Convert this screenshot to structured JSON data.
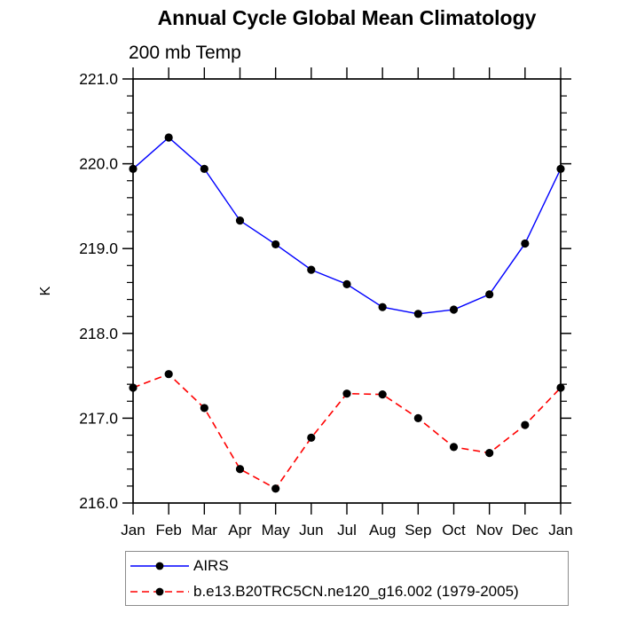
{
  "chart_data": {
    "type": "line",
    "title": "Annual Cycle Global Mean Climatology",
    "subtitle": "200 mb Temp",
    "ylabel": "K",
    "xlabel": "",
    "categories": [
      "Jan",
      "Feb",
      "Mar",
      "Apr",
      "May",
      "Jun",
      "Jul",
      "Aug",
      "Sep",
      "Oct",
      "Nov",
      "Dec",
      "Jan"
    ],
    "ylim": [
      216.0,
      221.0
    ],
    "ytick_interval": 1.0,
    "yminor_interval": 0.2,
    "ytick_labels": [
      "216.0",
      "217.0",
      "218.0",
      "219.0",
      "220.0",
      "221.0"
    ],
    "grid": false,
    "legend_position": "bottom-left",
    "axis_color": "#000000",
    "marker_color": "#000000",
    "series": [
      {
        "name": "AIRS",
        "color": "#0000ff",
        "line_style": "solid",
        "marker": "filled-circle",
        "values": [
          219.94,
          220.31,
          219.94,
          219.33,
          219.05,
          218.75,
          218.58,
          218.31,
          218.23,
          218.28,
          218.46,
          219.06,
          219.94
        ]
      },
      {
        "name": "b.e13.B20TRC5CN.ne120_g16.002 (1979-2005)",
        "color": "#ff0000",
        "line_style": "dashed",
        "marker": "filled-circle",
        "values": [
          217.36,
          217.52,
          217.12,
          216.4,
          216.17,
          216.77,
          217.29,
          217.28,
          217.0,
          216.66,
          216.59,
          216.92,
          217.36
        ]
      }
    ]
  }
}
